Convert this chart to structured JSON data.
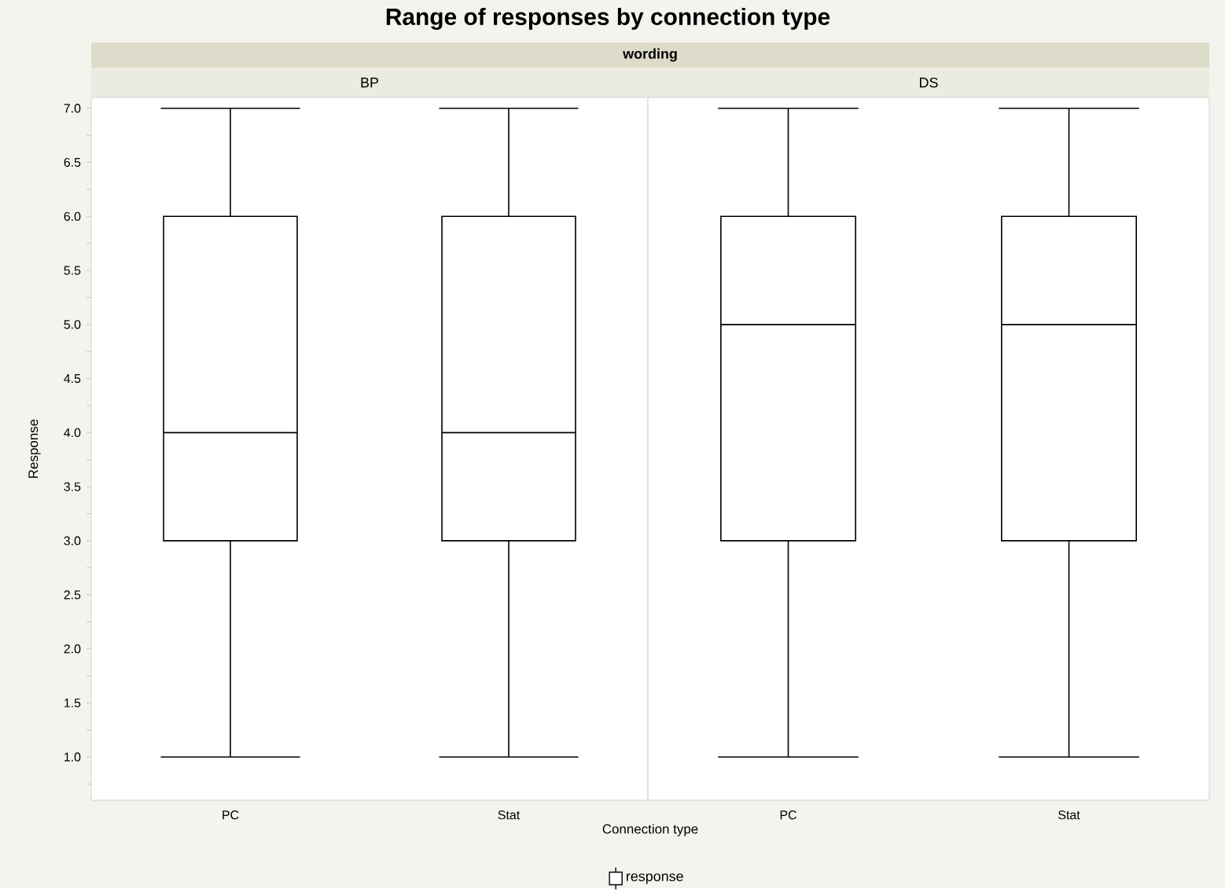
{
  "chart_data": [
    {
      "type": "box",
      "title": "Range of responses by connection type",
      "subtitle": "BP",
      "annotations": [
        "wording"
      ],
      "xlabel": "Connection type",
      "ylabel": "Response",
      "legend": "bottom",
      "categories": [
        "PC",
        "Stat"
      ],
      "series": [
        {
          "name": "response",
          "color": "#000000",
          "boxes": [
            {
              "low": 1,
              "q1": 3,
              "median": 4,
              "q3": 6,
              "high": 7
            },
            {
              "low": 1,
              "q1": 3,
              "median": 4,
              "q3": 6,
              "high": 7
            }
          ]
        }
      ],
      "ylim": [
        0.6,
        7.1
      ],
      "yticks": [
        {
          "value": 0.75,
          "label": null
        },
        {
          "value": 1,
          "label": "1.0"
        },
        {
          "value": 1.25,
          "label": null
        },
        {
          "value": 1.5,
          "label": "1.5"
        },
        {
          "value": 1.75,
          "label": null
        },
        {
          "value": 2,
          "label": "2.0"
        },
        {
          "value": 2.25,
          "label": null
        },
        {
          "value": 2.5,
          "label": "2.5"
        },
        {
          "value": 2.75,
          "label": null
        },
        {
          "value": 3,
          "label": "3.0"
        },
        {
          "value": 3.25,
          "label": null
        },
        {
          "value": 3.5,
          "label": "3.5"
        },
        {
          "value": 3.75,
          "label": null
        },
        {
          "value": 4,
          "label": "4.0"
        },
        {
          "value": 4.25,
          "label": null
        },
        {
          "value": 4.5,
          "label": "4.5"
        },
        {
          "value": 4.75,
          "label": null
        },
        {
          "value": 5,
          "label": "5.0"
        },
        {
          "value": 5.25,
          "label": null
        },
        {
          "value": 5.5,
          "label": "5.5"
        },
        {
          "value": 5.75,
          "label": null
        },
        {
          "value": 6,
          "label": "6.0"
        },
        {
          "value": 6.25,
          "label": null
        },
        {
          "value": 6.5,
          "label": "6.5"
        },
        {
          "value": 6.75,
          "label": null
        },
        {
          "value": 7,
          "label": "7.0"
        }
      ]
    },
    {
      "type": "box",
      "subtitle": "DS",
      "tick_labels": "x",
      "categories": [
        "PC",
        "Stat"
      ],
      "series": [
        {
          "color": "#000000",
          "boxes": [
            {
              "low": 1,
              "q1": 3,
              "median": 5,
              "q3": 6,
              "high": 7
            },
            {
              "low": 1,
              "q1": 3,
              "median": 5,
              "q3": 6,
              "high": 7
            }
          ]
        }
      ],
      "ylim": [
        0.6,
        7.1
      ]
    }
  ]
}
